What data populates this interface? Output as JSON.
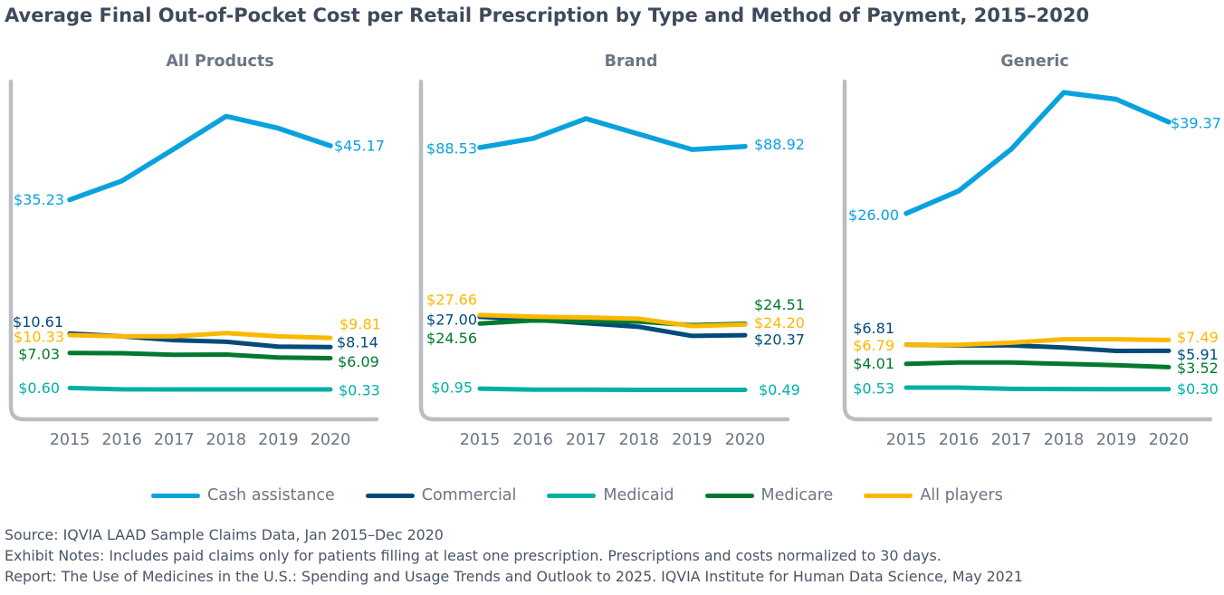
{
  "title": "Average Final Out-of-Pocket Cost per Retail Prescription by Type and Method of Payment, 2015–2020",
  "legend": {
    "entries": [
      {
        "label": "Cash assistance",
        "color": "#0aa2de"
      },
      {
        "label": "Commercial",
        "color": "#004b7a"
      },
      {
        "label": "Medicaid",
        "color": "#00b0a8"
      },
      {
        "label": "Medicare",
        "color": "#00792f"
      },
      {
        "label": "All players",
        "color": "#fbb800"
      }
    ]
  },
  "footer": {
    "source": "Source: IQVIA LAAD Sample Claims Data, Jan 2015–Dec 2020",
    "notes": "Exhibit Notes: Includes paid claims only for patients filling at least one prescription. Prescriptions and costs normalized to 30 days.",
    "report": "Report: The Use of Medicines in the U.S.: Spending and Usage Trends and Outlook to 2025. IQVIA Institute for Human Data Science, May 2021"
  },
  "chart_data": [
    {
      "type": "line",
      "title": "All Products",
      "xlabel": "",
      "ylabel": "",
      "x": [
        "2015",
        "2016",
        "2017",
        "2018",
        "2019",
        "2020"
      ],
      "ylim": [
        0,
        57
      ],
      "grid": false,
      "legend_position": "bottom",
      "series": [
        {
          "name": "Cash assistance",
          "color": "#0aa2de",
          "values": [
            35.23,
            38.7,
            44.6,
            50.6,
            48.4,
            45.17
          ],
          "labels": {
            "start": "$35.23",
            "end": "$45.17"
          }
        },
        {
          "name": "Commercial",
          "color": "#004b7a",
          "values": [
            10.61,
            10.1,
            9.4,
            9.1,
            8.2,
            8.14
          ],
          "labels": {
            "start": "$10.61",
            "end": "$8.14"
          }
        },
        {
          "name": "Medicaid",
          "color": "#00b0a8",
          "values": [
            0.6,
            0.35,
            0.34,
            0.34,
            0.33,
            0.33
          ],
          "labels": {
            "start": "$0.60",
            "end": "$0.33"
          }
        },
        {
          "name": "Medicare",
          "color": "#00792f",
          "values": [
            7.03,
            7.0,
            6.7,
            6.75,
            6.2,
            6.09
          ],
          "labels": {
            "start": "$7.03",
            "end": "$6.09"
          }
        },
        {
          "name": "All players",
          "color": "#fbb800",
          "values": [
            10.33,
            10.1,
            10.1,
            10.7,
            10.1,
            9.81
          ],
          "labels": {
            "start": "$10.33",
            "end": "$9.81"
          }
        }
      ]
    },
    {
      "type": "line",
      "title": "Brand",
      "xlabel": "",
      "ylabel": "",
      "x": [
        "2015",
        "2016",
        "2017",
        "2018",
        "2019",
        "2020"
      ],
      "ylim": [
        0,
        112.5
      ],
      "grid": false,
      "legend_position": "bottom",
      "series": [
        {
          "name": "Cash assistance",
          "color": "#0aa2de",
          "values": [
            88.53,
            91.8,
            99.0,
            93.4,
            87.8,
            88.92
          ],
          "labels": {
            "start": "$88.53",
            "end": "$88.92"
          }
        },
        {
          "name": "Commercial",
          "color": "#004b7a",
          "values": [
            27.0,
            26.0,
            24.7,
            23.4,
            20.1,
            20.37
          ],
          "labels": {
            "start": "$27.00",
            "end": "$20.37"
          }
        },
        {
          "name": "Medicaid",
          "color": "#00b0a8",
          "values": [
            0.95,
            0.6,
            0.55,
            0.5,
            0.5,
            0.49
          ],
          "labels": {
            "start": "$0.95",
            "end": "$0.49"
          }
        },
        {
          "name": "Medicare",
          "color": "#00792f",
          "values": [
            24.56,
            25.7,
            25.5,
            25.3,
            24.0,
            24.51
          ],
          "labels": {
            "start": "$24.56",
            "end": "$24.51"
          }
        },
        {
          "name": "All players",
          "color": "#fbb800",
          "values": [
            27.66,
            27.1,
            26.8,
            26.3,
            23.7,
            24.2
          ],
          "labels": {
            "start": "$27.66",
            "end": "$24.20"
          }
        }
      ]
    },
    {
      "type": "line",
      "title": "Generic",
      "xlabel": "",
      "ylabel": "",
      "x": [
        "2015",
        "2016",
        "2017",
        "2018",
        "2019",
        "2020"
      ],
      "ylim": [
        0,
        45.3
      ],
      "grid": false,
      "legend_position": "bottom",
      "series": [
        {
          "name": "Cash assistance",
          "color": "#0aa2de",
          "values": [
            26.0,
            29.3,
            35.4,
            43.7,
            42.7,
            39.37
          ],
          "labels": {
            "start": "$26.00",
            "end": "$39.37"
          }
        },
        {
          "name": "Commercial",
          "color": "#004b7a",
          "values": [
            6.81,
            6.7,
            6.7,
            6.4,
            5.9,
            5.91
          ],
          "labels": {
            "start": "$6.81",
            "end": "$5.91"
          }
        },
        {
          "name": "Medicaid",
          "color": "#00b0a8",
          "values": [
            0.53,
            0.53,
            0.35,
            0.32,
            0.3,
            0.3
          ],
          "labels": {
            "start": "$0.53",
            "end": "$0.30"
          }
        },
        {
          "name": "Medicare",
          "color": "#00792f",
          "values": [
            4.01,
            4.2,
            4.2,
            4.0,
            3.8,
            3.52
          ],
          "labels": {
            "start": "$4.01",
            "end": "$3.52"
          }
        },
        {
          "name": "All players",
          "color": "#fbb800",
          "values": [
            6.79,
            6.8,
            7.1,
            7.6,
            7.6,
            7.49
          ],
          "labels": {
            "start": "$6.79",
            "end": "$7.49"
          }
        }
      ]
    }
  ]
}
